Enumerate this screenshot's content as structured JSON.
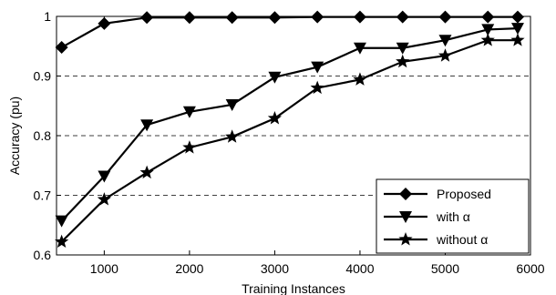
{
  "chart_data": {
    "type": "line",
    "title": "",
    "xlabel": "Training Instances",
    "ylabel": "Accuracy (pu)",
    "xlim": [
      440,
      6000
    ],
    "ylim": [
      0.6,
      1.0
    ],
    "xticks": [
      1000,
      2000,
      3000,
      4000,
      5000,
      6000
    ],
    "xtick_labels": [
      "1000",
      "2000",
      "3000",
      "4000",
      "5000",
      "6000"
    ],
    "yticks": [
      0.6,
      0.7,
      0.8,
      0.9,
      1.0
    ],
    "ytick_labels": [
      "0.6",
      "0.7",
      "0.8",
      "0.9",
      "1"
    ],
    "grid": "horizontal-dashed",
    "legend_position": "bottom-right",
    "x": [
      500,
      1000,
      1500,
      2000,
      2500,
      3000,
      3500,
      4000,
      4500,
      5000,
      5500,
      5850
    ],
    "series": [
      {
        "name": "Proposed",
        "marker": "diamond",
        "color": "#000000",
        "values": [
          0.948,
          0.988,
          0.998,
          0.998,
          0.998,
          0.998,
          0.999,
          0.999,
          0.999,
          0.999,
          0.999,
          0.999
        ]
      },
      {
        "name": "with α",
        "marker": "triangle-down",
        "color": "#000000",
        "values": [
          0.657,
          0.732,
          0.818,
          0.84,
          0.852,
          0.898,
          0.915,
          0.947,
          0.947,
          0.96,
          0.978,
          0.98
        ]
      },
      {
        "name": "without α",
        "marker": "star",
        "color": "#000000",
        "values": [
          0.622,
          0.693,
          0.738,
          0.78,
          0.798,
          0.829,
          0.88,
          0.894,
          0.924,
          0.934,
          0.96,
          0.96
        ]
      }
    ]
  }
}
